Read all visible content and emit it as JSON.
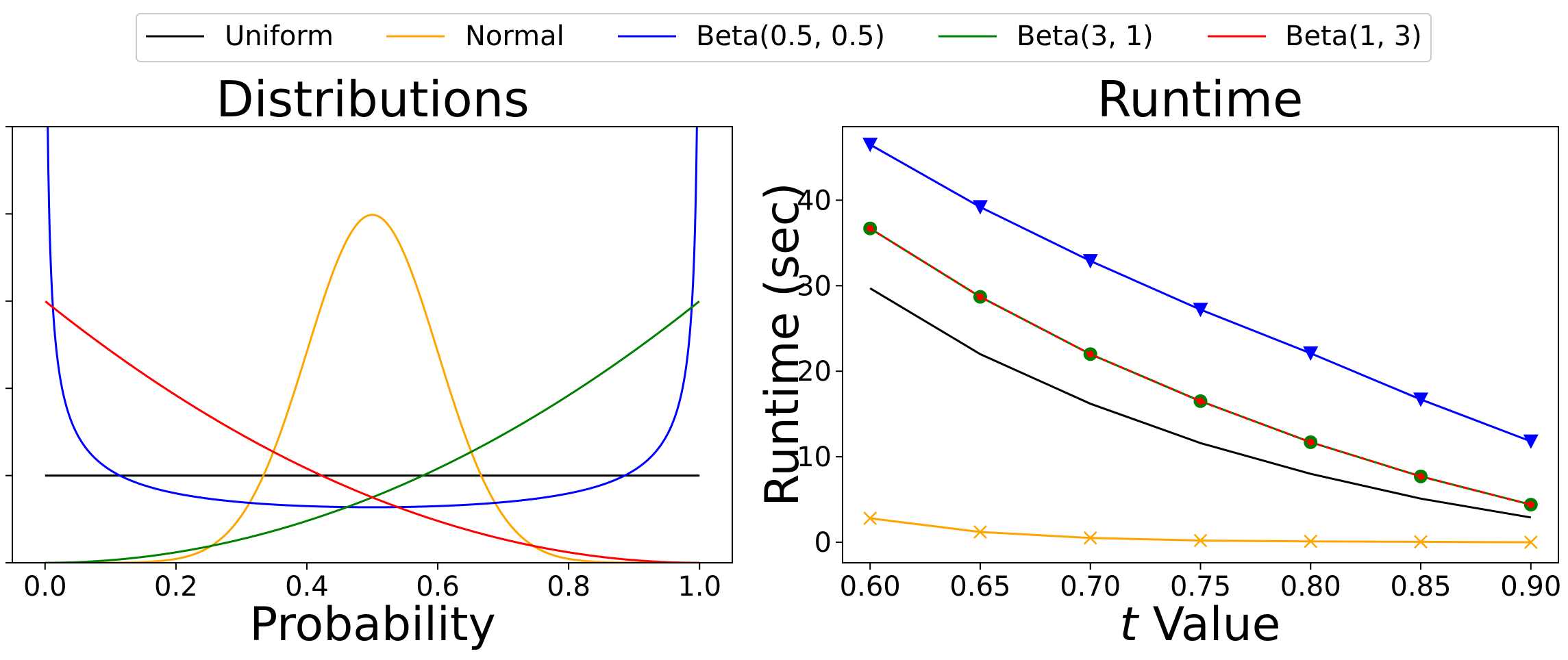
{
  "legend": {
    "entries": [
      {
        "label": "Uniform",
        "color": "#000000"
      },
      {
        "label": "Normal",
        "color": "#FFA500"
      },
      {
        "label": "Beta(0.5, 0.5)",
        "color": "#0000FF"
      },
      {
        "label": "Beta(3, 1)",
        "color": "#008000"
      },
      {
        "label": "Beta(1, 3)",
        "color": "#FF0000"
      }
    ]
  },
  "chart_data": [
    {
      "type": "line",
      "title": "Distributions",
      "xlabel": "Probability",
      "ylabel": "",
      "xlim": [
        -0.05,
        1.05
      ],
      "ylim": [
        0,
        5
      ],
      "xticks": [
        0.0,
        0.2,
        0.4,
        0.6,
        0.8,
        1.0
      ],
      "xtick_labels": [
        "0.0",
        "0.2",
        "0.4",
        "0.6",
        "0.8",
        "1.0"
      ],
      "yticks": [
        0,
        1,
        2,
        3,
        4,
        5
      ],
      "ytick_labels": [
        "",
        "",
        "",
        "",
        "",
        ""
      ],
      "series": [
        {
          "name": "Uniform",
          "color": "#000000",
          "function": "uniform"
        },
        {
          "name": "Normal",
          "color": "#FFA500",
          "function": "normal",
          "mean": 0.5,
          "sd": 0.1
        },
        {
          "name": "Beta(0.5, 0.5)",
          "color": "#0000FF",
          "function": "beta",
          "a": 0.5,
          "b": 0.5
        },
        {
          "name": "Beta(3, 1)",
          "color": "#008000",
          "function": "beta",
          "a": 3,
          "b": 1
        },
        {
          "name": "Beta(1, 3)",
          "color": "#FF0000",
          "function": "beta",
          "a": 1,
          "b": 3
        }
      ]
    },
    {
      "type": "line",
      "title": "Runtime",
      "xlabel_italic": "t",
      "xlabel": " Value",
      "ylabel": "Runtime (sec)",
      "xlim": [
        0.5875,
        0.9125
      ],
      "ylim": [
        -2.4,
        48.6
      ],
      "x": [
        0.6,
        0.65,
        0.7,
        0.75,
        0.8,
        0.85,
        0.9
      ],
      "xticks": [
        0.6,
        0.65,
        0.7,
        0.75,
        0.8,
        0.85,
        0.9
      ],
      "xtick_labels": [
        "0.60",
        "0.65",
        "0.70",
        "0.75",
        "0.80",
        "0.85",
        "0.90"
      ],
      "yticks": [
        0,
        10,
        20,
        30,
        40
      ],
      "ytick_labels": [
        "0",
        "10",
        "20",
        "30",
        "40"
      ],
      "series": [
        {
          "name": "Uniform",
          "color": "#000000",
          "marker": "none",
          "values": [
            29.7,
            22.0,
            16.2,
            11.6,
            8.0,
            5.1,
            2.9
          ]
        },
        {
          "name": "Normal",
          "color": "#FFA500",
          "marker": "x",
          "values": [
            2.8,
            1.2,
            0.5,
            0.2,
            0.1,
            0.05,
            0.0
          ]
        },
        {
          "name": "Beta(0.5, 0.5)",
          "color": "#0000FF",
          "marker": "triangle-down",
          "values": [
            46.5,
            39.2,
            32.9,
            27.2,
            22.1,
            16.7,
            11.8
          ]
        },
        {
          "name": "Beta(3, 1)",
          "color": "#008000",
          "marker": "circle",
          "values": [
            36.7,
            28.7,
            22.0,
            16.5,
            11.7,
            7.7,
            4.4
          ]
        },
        {
          "name": "Beta(1, 3)",
          "color": "#FF0000",
          "marker": "dot",
          "dashed": true,
          "values": [
            36.7,
            28.7,
            22.0,
            16.5,
            11.7,
            7.7,
            4.4
          ]
        }
      ]
    }
  ]
}
